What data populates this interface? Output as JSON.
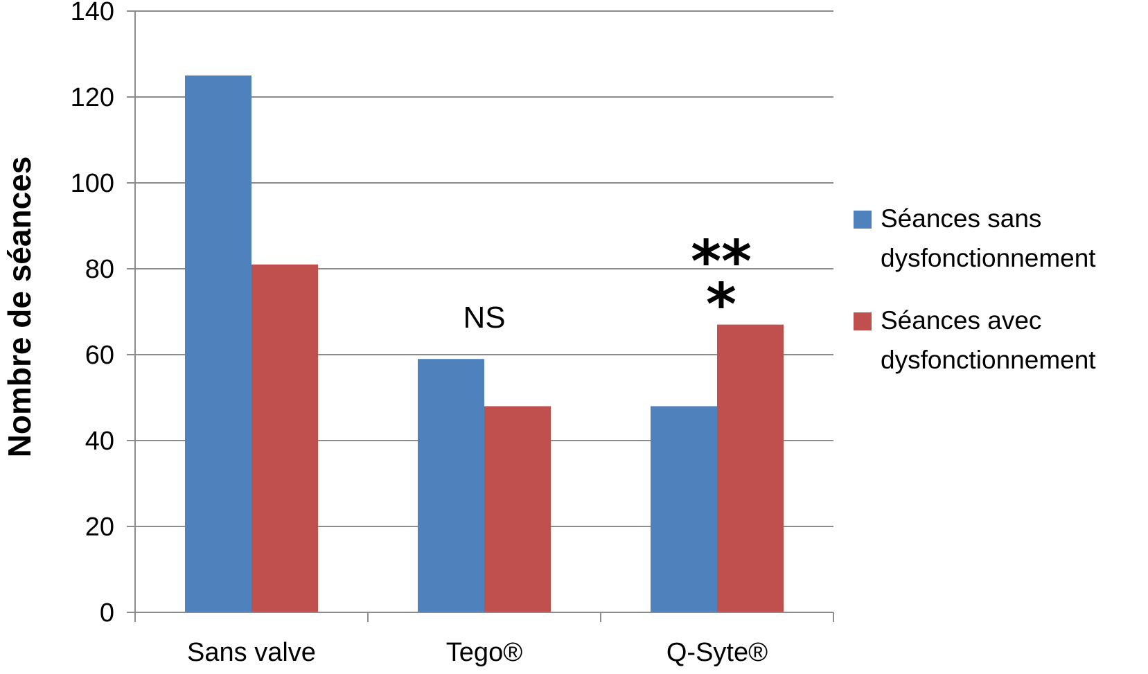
{
  "chart_data": {
    "type": "bar",
    "title": "",
    "xlabel": "",
    "ylabel": "Nombre de séances",
    "ylim": [
      0,
      140
    ],
    "yticks": [
      0,
      20,
      40,
      60,
      80,
      100,
      120,
      140
    ],
    "categories": [
      "Sans valve",
      "Tego®",
      "Q-Syte®"
    ],
    "series": [
      {
        "name": "Séances sans dysfonctionnement",
        "name_lines": [
          "Séances sans",
          "dysfonctionnement"
        ],
        "color": "#4F81BD",
        "values": [
          125,
          59,
          48
        ]
      },
      {
        "name": "Séances avec dysfonctionnement",
        "name_lines": [
          "Séances avec",
          "dysfonctionnement"
        ],
        "color": "#C0504D",
        "values": [
          81,
          48,
          67
        ]
      }
    ],
    "grid": true,
    "legend_position": "right",
    "annotations": [
      {
        "category": "Tego®",
        "lines": [
          "NS"
        ],
        "style": "text"
      },
      {
        "category": "Q-Syte®",
        "lines": [
          "**",
          "*"
        ],
        "style": "stars"
      }
    ]
  }
}
